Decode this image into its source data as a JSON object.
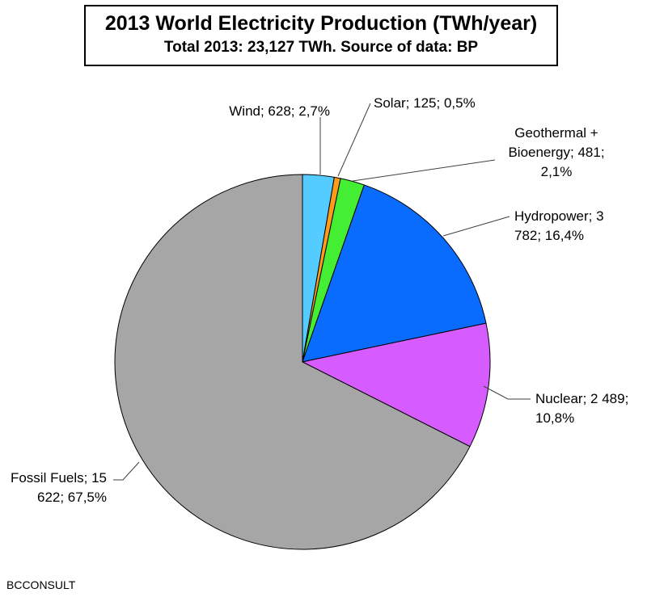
{
  "chart_data": {
    "type": "pie",
    "title": "2013 World Electricity Production (TWh/year)",
    "subtitle": "Total 2013: 23,127 TWh. Source of data: BP",
    "unit": "TWh/year",
    "total": 23127,
    "slices": [
      {
        "name": "Wind",
        "value": 628,
        "percent": 2.7,
        "label_lines": [
          "Wind; 628; 2,7%"
        ],
        "color": "#55ccff"
      },
      {
        "name": "Solar",
        "value": 125,
        "percent": 0.5,
        "label_lines": [
          "Solar; 125; 0,5%"
        ],
        "color": "#ff9a1a"
      },
      {
        "name": "Geothermal + Bioenergy",
        "value": 481,
        "percent": 2.1,
        "label_lines": [
          "Geothermal +",
          "Bioenergy; 481;",
          "2,1%"
        ],
        "color": "#44ee33"
      },
      {
        "name": "Hydropower",
        "value": 3782,
        "percent": 16.4,
        "label_lines": [
          "Hydropower; 3",
          "782; 16,4%"
        ],
        "color": "#0a6cff"
      },
      {
        "name": "Nuclear",
        "value": 2489,
        "percent": 10.8,
        "label_lines": [
          "Nuclear; 2 489;",
          "10,8%"
        ],
        "color": "#d65cff"
      },
      {
        "name": "Fossil Fuels",
        "value": 15622,
        "percent": 67.5,
        "label_lines": [
          "Fossil Fuels; 15",
          "622; 67,5%"
        ],
        "color": "#a6a6a6"
      }
    ],
    "start_angle_deg": 0,
    "direction": "clockwise",
    "legend": "none",
    "data_labels": "outside with leader lines"
  },
  "footer": {
    "credit": "BCCONSULT"
  }
}
